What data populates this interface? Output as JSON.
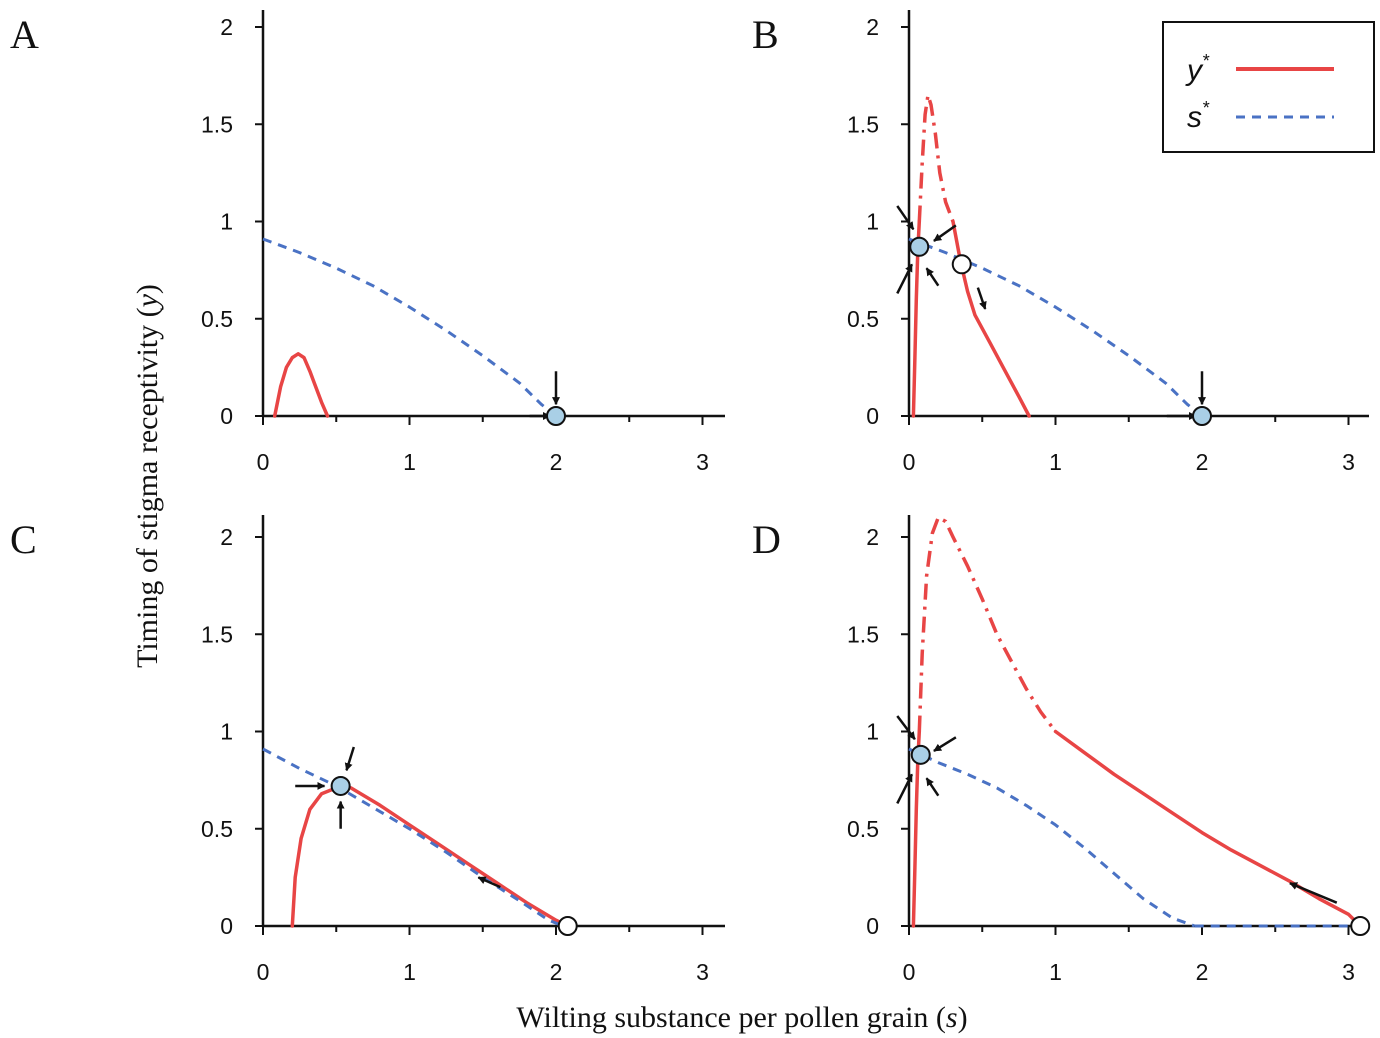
{
  "figure": {
    "ylabel_main": "Timing of stigma receptivity (",
    "ylabel_var": "y",
    "ylabel_close": ")",
    "xlabel_main": "Wilting substance per pollen grain (",
    "xlabel_var": "s",
    "xlabel_close": ")"
  },
  "legend": {
    "items": [
      {
        "name": "y",
        "sup": "*",
        "color": "#e84545",
        "style": "solid"
      },
      {
        "name": "s",
        "sup": "*",
        "color": "#4a72c4",
        "style": "dashed"
      }
    ]
  },
  "colors": {
    "y_star": "#e84545",
    "s_star": "#4a72c4",
    "stable_fill": "#a9cfe6",
    "axis": "#111111"
  },
  "chart_data": [
    {
      "panel": "A",
      "type": "line",
      "xlim": [
        0,
        3.1
      ],
      "ylim": [
        0,
        2.1
      ],
      "xticks": [
        0,
        1,
        2,
        3
      ],
      "yticks": [
        0,
        0.5,
        1,
        1.5,
        2
      ],
      "xtick_labels": [
        "0",
        "1",
        "2",
        "3"
      ],
      "ytick_labels": [
        "0",
        "0.5",
        "1",
        "1.5",
        "2"
      ],
      "series": [
        {
          "name": "y*",
          "segments": [
            {
              "style": "solid",
              "points": [
                [
                  0.08,
                  0
                ],
                [
                  0.12,
                  0.15
                ],
                [
                  0.16,
                  0.25
                ],
                [
                  0.2,
                  0.3
                ],
                [
                  0.24,
                  0.32
                ],
                [
                  0.28,
                  0.3
                ],
                [
                  0.32,
                  0.23
                ],
                [
                  0.36,
                  0.15
                ],
                [
                  0.4,
                  0.07
                ],
                [
                  0.44,
                  0
                ]
              ]
            }
          ]
        },
        {
          "name": "s*",
          "segments": [
            {
              "style": "dashed",
              "points": [
                [
                  0,
                  0.91
                ],
                [
                  0.25,
                  0.84
                ],
                [
                  0.5,
                  0.76
                ],
                [
                  0.75,
                  0.67
                ],
                [
                  1.0,
                  0.56
                ],
                [
                  1.25,
                  0.44
                ],
                [
                  1.5,
                  0.31
                ],
                [
                  1.75,
                  0.17
                ],
                [
                  1.9,
                  0.06
                ],
                [
                  2.0,
                  0
                ]
              ]
            }
          ]
        }
      ],
      "equilibria": [
        {
          "x": 2.0,
          "y": 0,
          "stable": true
        }
      ],
      "arrows": [
        {
          "from": [
            1.82,
            0.0
          ],
          "to": [
            1.96,
            0.0
          ]
        },
        {
          "from": [
            2.0,
            0.23
          ],
          "to": [
            2.0,
            0.06
          ]
        }
      ]
    },
    {
      "panel": "B",
      "type": "line",
      "xlim": [
        0,
        3.1
      ],
      "ylim": [
        0,
        2.1
      ],
      "xticks": [
        0,
        1,
        2,
        3
      ],
      "yticks": [
        0,
        0.5,
        1,
        1.5,
        2
      ],
      "xtick_labels": [
        "0",
        "1",
        "2",
        "3"
      ],
      "ytick_labels": [
        "0",
        "0.5",
        "1",
        "1.5",
        "2"
      ],
      "series": [
        {
          "name": "y*",
          "segments": [
            {
              "style": "solid",
              "points": [
                [
                  0.03,
                  0
                ],
                [
                  0.04,
                  0.3
                ],
                [
                  0.05,
                  0.6
                ],
                [
                  0.06,
                  0.85
                ],
                [
                  0.07,
                  1.0
                ]
              ]
            },
            {
              "style": "dashdot",
              "points": [
                [
                  0.07,
                  1.0
                ],
                [
                  0.09,
                  1.3
                ],
                [
                  0.11,
                  1.55
                ],
                [
                  0.13,
                  1.65
                ],
                [
                  0.15,
                  1.6
                ],
                [
                  0.18,
                  1.45
                ],
                [
                  0.21,
                  1.25
                ],
                [
                  0.25,
                  1.1
                ],
                [
                  0.3,
                  1.0
                ]
              ]
            },
            {
              "style": "solid",
              "points": [
                [
                  0.3,
                  1.0
                ],
                [
                  0.35,
                  0.8
                ],
                [
                  0.4,
                  0.64
                ],
                [
                  0.45,
                  0.52
                ],
                [
                  0.55,
                  0.38
                ],
                [
                  0.65,
                  0.24
                ],
                [
                  0.75,
                  0.1
                ],
                [
                  0.82,
                  0
                ]
              ]
            }
          ]
        },
        {
          "name": "s*",
          "segments": [
            {
              "style": "dashed",
              "points": [
                [
                  0,
                  0.91
                ],
                [
                  0.25,
                  0.84
                ],
                [
                  0.5,
                  0.76
                ],
                [
                  0.75,
                  0.67
                ],
                [
                  1.0,
                  0.56
                ],
                [
                  1.25,
                  0.44
                ],
                [
                  1.5,
                  0.31
                ],
                [
                  1.75,
                  0.17
                ],
                [
                  1.9,
                  0.06
                ],
                [
                  2.0,
                  0
                ]
              ]
            }
          ]
        }
      ],
      "equilibria": [
        {
          "x": 0.07,
          "y": 0.87,
          "stable": true
        },
        {
          "x": 0.36,
          "y": 0.78,
          "stable": false
        },
        {
          "x": 2.0,
          "y": 0,
          "stable": true
        }
      ],
      "arrows": [
        {
          "from": [
            -0.08,
            1.08
          ],
          "to": [
            0.03,
            0.96
          ]
        },
        {
          "from": [
            0.32,
            0.98
          ],
          "to": [
            0.17,
            0.9
          ]
        },
        {
          "from": [
            -0.08,
            0.63
          ],
          "to": [
            0.02,
            0.78
          ]
        },
        {
          "from": [
            0.2,
            0.67
          ],
          "to": [
            0.12,
            0.76
          ]
        },
        {
          "from": [
            0.47,
            0.66
          ],
          "to": [
            0.52,
            0.55
          ]
        },
        {
          "from": [
            1.76,
            0.0
          ],
          "to": [
            1.96,
            0.0
          ]
        },
        {
          "from": [
            2.0,
            0.23
          ],
          "to": [
            2.0,
            0.06
          ]
        }
      ]
    },
    {
      "panel": "C",
      "type": "line",
      "xlim": [
        0,
        3.1
      ],
      "ylim": [
        0,
        2.1
      ],
      "xticks": [
        0,
        1,
        2,
        3
      ],
      "yticks": [
        0,
        0.5,
        1,
        1.5,
        2
      ],
      "xtick_labels": [
        "0",
        "1",
        "2",
        "3"
      ],
      "ytick_labels": [
        "0",
        "0.5",
        "1",
        "1.5",
        "2"
      ],
      "series": [
        {
          "name": "y*",
          "segments": [
            {
              "style": "solid",
              "points": [
                [
                  0.2,
                  0
                ],
                [
                  0.22,
                  0.25
                ],
                [
                  0.26,
                  0.45
                ],
                [
                  0.32,
                  0.6
                ],
                [
                  0.4,
                  0.68
                ],
                [
                  0.5,
                  0.71
                ],
                [
                  0.6,
                  0.71
                ],
                [
                  0.8,
                  0.62
                ],
                [
                  1.0,
                  0.52
                ],
                [
                  1.2,
                  0.42
                ],
                [
                  1.4,
                  0.32
                ],
                [
                  1.6,
                  0.22
                ],
                [
                  1.8,
                  0.12
                ],
                [
                  2.0,
                  0.03
                ],
                [
                  2.08,
                  0
                ]
              ]
            }
          ]
        },
        {
          "name": "s*",
          "segments": [
            {
              "style": "dashed",
              "points": [
                [
                  0,
                  0.91
                ],
                [
                  0.25,
                  0.81
                ],
                [
                  0.5,
                  0.72
                ],
                [
                  0.75,
                  0.61
                ],
                [
                  1.0,
                  0.5
                ],
                [
                  1.25,
                  0.38
                ],
                [
                  1.5,
                  0.25
                ],
                [
                  1.75,
                  0.13
                ],
                [
                  1.95,
                  0.03
                ],
                [
                  2.05,
                  0
                ]
              ]
            }
          ]
        }
      ],
      "equilibria": [
        {
          "x": 0.53,
          "y": 0.72,
          "stable": true
        },
        {
          "x": 2.08,
          "y": 0,
          "stable": false
        }
      ],
      "arrows": [
        {
          "from": [
            0.22,
            0.72
          ],
          "to": [
            0.42,
            0.72
          ]
        },
        {
          "from": [
            0.62,
            0.92
          ],
          "to": [
            0.57,
            0.8
          ]
        },
        {
          "from": [
            0.53,
            0.5
          ],
          "to": [
            0.53,
            0.64
          ]
        },
        {
          "from": [
            1.62,
            0.2
          ],
          "to": [
            1.47,
            0.25
          ]
        }
      ]
    },
    {
      "panel": "D",
      "type": "line",
      "xlim": [
        0,
        3.1
      ],
      "ylim": [
        0,
        2.1
      ],
      "xticks": [
        0,
        1,
        2,
        3
      ],
      "yticks": [
        0,
        0.5,
        1,
        1.5,
        2
      ],
      "xtick_labels": [
        "0",
        "1",
        "2",
        "3"
      ],
      "ytick_labels": [
        "0",
        "0.5",
        "1",
        "1.5",
        "2"
      ],
      "series": [
        {
          "name": "y*",
          "segments": [
            {
              "style": "solid",
              "points": [
                [
                  0.03,
                  0
                ],
                [
                  0.04,
                  0.3
                ],
                [
                  0.05,
                  0.6
                ],
                [
                  0.06,
                  0.85
                ],
                [
                  0.07,
                  1.0
                ]
              ]
            },
            {
              "style": "dashdot",
              "points": [
                [
                  0.07,
                  1.0
                ],
                [
                  0.09,
                  1.4
                ],
                [
                  0.12,
                  1.8
                ],
                [
                  0.16,
                  2.02
                ],
                [
                  0.2,
                  2.1
                ],
                [
                  0.25,
                  2.08
                ],
                [
                  0.3,
                  2.0
                ],
                [
                  0.4,
                  1.85
                ],
                [
                  0.5,
                  1.68
                ],
                [
                  0.6,
                  1.5
                ],
                [
                  0.7,
                  1.36
                ],
                [
                  0.8,
                  1.22
                ],
                [
                  0.9,
                  1.1
                ],
                [
                  1.0,
                  1.0
                ]
              ]
            },
            {
              "style": "solid",
              "points": [
                [
                  1.0,
                  1.0
                ],
                [
                  1.2,
                  0.89
                ],
                [
                  1.4,
                  0.78
                ],
                [
                  1.6,
                  0.68
                ],
                [
                  1.8,
                  0.58
                ],
                [
                  2.0,
                  0.48
                ],
                [
                  2.2,
                  0.39
                ],
                [
                  2.4,
                  0.31
                ],
                [
                  2.6,
                  0.23
                ],
                [
                  2.8,
                  0.14
                ],
                [
                  3.0,
                  0.06
                ],
                [
                  3.08,
                  0
                ]
              ]
            }
          ]
        },
        {
          "name": "s*",
          "segments": [
            {
              "style": "dashed",
              "points": [
                [
                  0,
                  0.91
                ],
                [
                  0.2,
                  0.84
                ],
                [
                  0.4,
                  0.78
                ],
                [
                  0.6,
                  0.71
                ],
                [
                  0.8,
                  0.62
                ],
                [
                  1.0,
                  0.52
                ],
                [
                  1.2,
                  0.4
                ],
                [
                  1.4,
                  0.27
                ],
                [
                  1.6,
                  0.14
                ],
                [
                  1.8,
                  0.04
                ],
                [
                  1.95,
                  0
                ]
              ]
            },
            {
              "style": "dashed",
              "points": [
                [
                  1.95,
                  0
                ],
                [
                  3.08,
                  0
                ]
              ]
            }
          ]
        }
      ],
      "equilibria": [
        {
          "x": 0.08,
          "y": 0.88,
          "stable": true
        },
        {
          "x": 3.08,
          "y": 0,
          "stable": false
        }
      ],
      "arrows": [
        {
          "from": [
            -0.08,
            1.08
          ],
          "to": [
            0.04,
            0.96
          ]
        },
        {
          "from": [
            0.32,
            0.97
          ],
          "to": [
            0.17,
            0.9
          ]
        },
        {
          "from": [
            -0.08,
            0.63
          ],
          "to": [
            0.02,
            0.78
          ]
        },
        {
          "from": [
            0.2,
            0.67
          ],
          "to": [
            0.12,
            0.76
          ]
        },
        {
          "from": [
            2.92,
            0.12
          ],
          "to": [
            2.6,
            0.22
          ]
        }
      ]
    }
  ]
}
